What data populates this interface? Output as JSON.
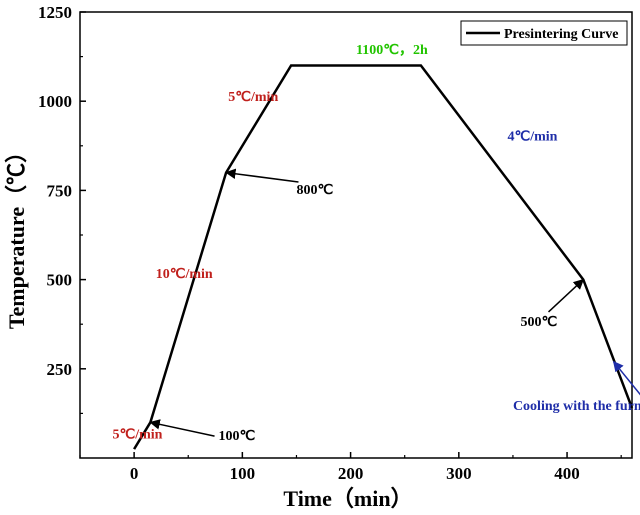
{
  "chart_data": {
    "type": "line",
    "title": "",
    "xlabel": "Time（min）",
    "ylabel": "Temperature（℃）",
    "xlim": [
      -50,
      460
    ],
    "ylim": [
      0,
      1250
    ],
    "xticks": [
      0,
      100,
      200,
      300,
      400
    ],
    "yticks": [
      250,
      500,
      750,
      1000,
      1250
    ],
    "grid": false,
    "legend": {
      "position": "top-right",
      "entries": [
        "Presintering Curve"
      ]
    },
    "series": [
      {
        "name": "Presintering Curve",
        "color": "#000000",
        "x": [
          0,
          15,
          85,
          145,
          265,
          415,
          460
        ],
        "y": [
          25,
          100,
          800,
          1100,
          1100,
          500,
          140
        ]
      }
    ],
    "annotations": [
      {
        "id": "rate-5-low",
        "text": "5℃/min",
        "color": "#c0201c",
        "x": -20,
        "y": 55
      },
      {
        "id": "point-100",
        "text": "100℃",
        "color": "#000000",
        "x": 78,
        "y": 50,
        "arrow_to": [
          15,
          100
        ]
      },
      {
        "id": "rate-10",
        "text": "10℃/min",
        "color": "#c0201c",
        "x": 20,
        "y": 505
      },
      {
        "id": "point-800",
        "text": "800℃",
        "color": "#000000",
        "x": 150,
        "y": 740,
        "arrow_to": [
          85,
          800
        ]
      },
      {
        "id": "rate-5-high",
        "text": "5℃/min",
        "color": "#c0201c",
        "x": 87,
        "y": 1000
      },
      {
        "id": "hold",
        "text": "1100℃，2h",
        "color": "#22c400",
        "x": 205,
        "y": 1132
      },
      {
        "id": "rate-4",
        "text": "4℃/min",
        "color": "#1f2ea8",
        "x": 345,
        "y": 890
      },
      {
        "id": "point-500",
        "text": "500℃",
        "color": "#000000",
        "x": 357,
        "y": 370,
        "arrow_to": [
          415,
          500
        ]
      },
      {
        "id": "cooling",
        "text": "Cooling with the furnace",
        "color": "#1f2ea8",
        "x": 350,
        "y": 135,
        "arrow_to": [
          443,
          270
        ]
      }
    ]
  }
}
